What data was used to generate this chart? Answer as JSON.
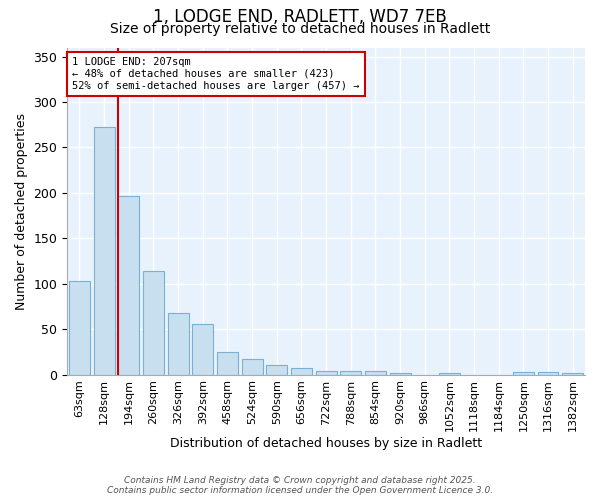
{
  "title_line1": "1, LODGE END, RADLETT, WD7 7EB",
  "title_line2": "Size of property relative to detached houses in Radlett",
  "xlabel": "Distribution of detached houses by size in Radlett",
  "ylabel": "Number of detached properties",
  "categories": [
    "63sqm",
    "128sqm",
    "194sqm",
    "260sqm",
    "326sqm",
    "392sqm",
    "458sqm",
    "524sqm",
    "590sqm",
    "656sqm",
    "722sqm",
    "788sqm",
    "854sqm",
    "920sqm",
    "986sqm",
    "1052sqm",
    "1118sqm",
    "1184sqm",
    "1250sqm",
    "1316sqm",
    "1382sqm"
  ],
  "values": [
    103,
    272,
    197,
    114,
    68,
    56,
    25,
    17,
    10,
    7,
    4,
    4,
    4,
    2,
    0,
    2,
    0,
    0,
    3,
    3,
    2
  ],
  "bar_color": "#c8dff0",
  "bar_edge_color": "#7ab0d4",
  "fig_background_color": "#ffffff",
  "axes_background_color": "#e8f2fc",
  "grid_color": "#ffffff",
  "vline_color": "#cc0000",
  "annotation_text": "1 LODGE END: 207sqm\n← 48% of detached houses are smaller (423)\n52% of semi-detached houses are larger (457) →",
  "annotation_box_edgecolor": "#cc0000",
  "annotation_text_color": "#000000",
  "ylim": [
    0,
    360
  ],
  "yticks": [
    0,
    50,
    100,
    150,
    200,
    250,
    300,
    350
  ],
  "footer_text": "Contains HM Land Registry data © Crown copyright and database right 2025.\nContains public sector information licensed under the Open Government Licence 3.0.",
  "title_fontsize": 12,
  "subtitle_fontsize": 10
}
